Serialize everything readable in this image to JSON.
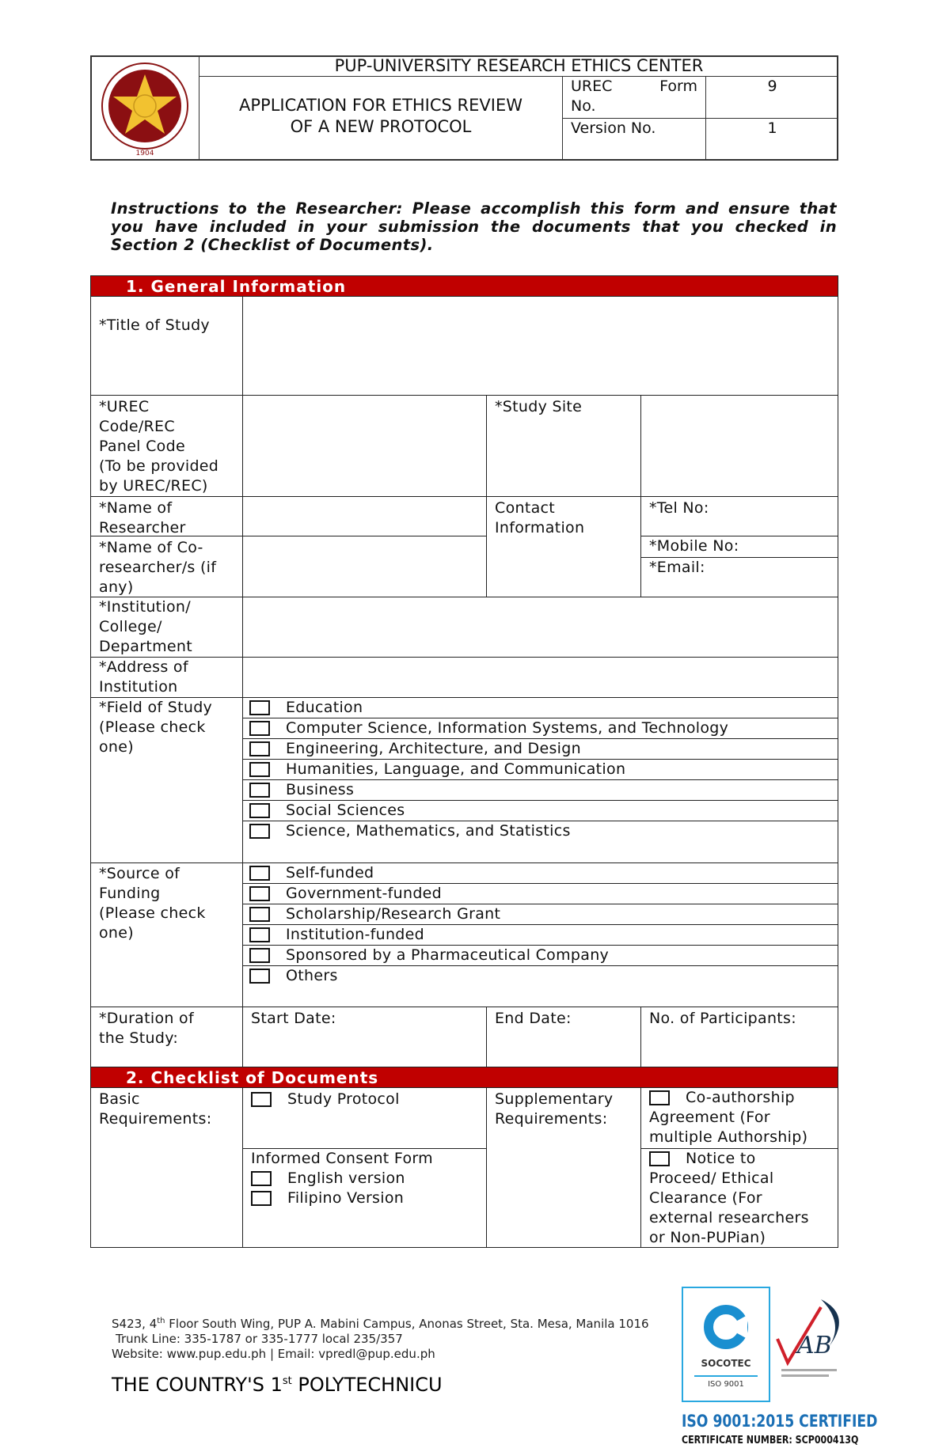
{
  "header": {
    "center_name": "PUP-UNIVERSITY RESEARCH ETHICS CENTER",
    "form_title_line1": "APPLICATION FOR ETHICS REVIEW",
    "form_title_line2": "OF A NEW PROTOCOL",
    "form_no_label_1": "UREC",
    "form_no_label_2": "Form",
    "form_no_label_3": "No.",
    "form_no_value": "9",
    "version_label": "Version No.",
    "version_value": "1",
    "seal_year": "1904"
  },
  "instructions": "Instructions to the Researcher: Please accomplish this form and ensure that you have included in your submission the documents that you checked in Section 2 (Checklist of Documents).",
  "section1": {
    "title": "1.  General Information",
    "title_of_study": "*Title of Study",
    "urec_code": [
      "*UREC",
      "Code/REC",
      "Panel Code",
      "(To be provided",
      "by UREC/REC)"
    ],
    "study_site": "*Study Site",
    "name_researcher": [
      "*Name of",
      "Researcher"
    ],
    "contact_info": [
      "Contact",
      "Information"
    ],
    "tel": "*Tel No:",
    "mobile": "*Mobile No:",
    "email": "*Email:",
    "co_researcher": [
      "*Name of Co-",
      "researcher/s (if",
      "any)"
    ],
    "institution": [
      "*Institution/",
      "College/",
      "Department"
    ],
    "address": [
      "*Address of",
      "Institution"
    ],
    "field_label": [
      "*Field of Study",
      "(Please check",
      "one)"
    ],
    "field_options": [
      "Education",
      "Computer Science, Information Systems, and Technology",
      "Engineering, Architecture, and Design",
      "Humanities, Language, and Communication",
      "Business",
      "Social Sciences",
      "Science, Mathematics, and Statistics"
    ],
    "funding_label": [
      "*Source of",
      "Funding",
      "(Please check",
      "one)"
    ],
    "funding_options": [
      "Self-funded",
      "Government-funded",
      "Scholarship/Research Grant",
      "Institution-funded",
      "Sponsored by a Pharmaceutical Company",
      "Others"
    ],
    "duration_label": [
      "*Duration of",
      "the Study:"
    ],
    "start_date": "Start Date:",
    "end_date": "End Date:",
    "participants": "No. of Participants:"
  },
  "section2": {
    "title": "2.  Checklist of Documents",
    "basic_label": [
      "Basic",
      "Requirements:"
    ],
    "study_protocol": "Study Protocol",
    "consent_form": "Informed Consent Form",
    "english": "English version",
    "filipino": "Filipino Version",
    "supplementary_label": [
      "Supplementary",
      "Requirements:"
    ],
    "coauthorship": [
      "Co-authorship",
      "Agreement (For",
      "multiple Authorship)"
    ],
    "notice": [
      "Notice to",
      "Proceed/ Ethical",
      "Clearance (For",
      "external researchers",
      "or Non-PUPian)"
    ]
  },
  "footer": {
    "address_pre": "S423, 4",
    "address_sup": "th",
    "address_post": " Floor South Wing, PUP A. Mabini Campus, Anonas Street, Sta. Mesa, Manila 1016",
    "trunk": "Trunk Line: 335-1787 or 335-1777 local 235/357",
    "web": "Website: www.pup.edu.ph | Email: vpredl@pup.edu.ph",
    "tagline_pre": "THE COUNTRY'S 1",
    "tagline_sup": "st",
    "tagline_post": " POLYTECHNICU",
    "socotec": "SOCOTEC",
    "socotec_iso": "ISO 9001",
    "iso_certified": "ISO 9001:2015 CERTIFIED",
    "certificate": "CERTIFICATE NUMBER: SCP000413Q",
    "colors": {
      "brand_red": "#c00000",
      "socotec_blue": "#29a8e0",
      "iso_blue": "#1a6fb5"
    }
  }
}
